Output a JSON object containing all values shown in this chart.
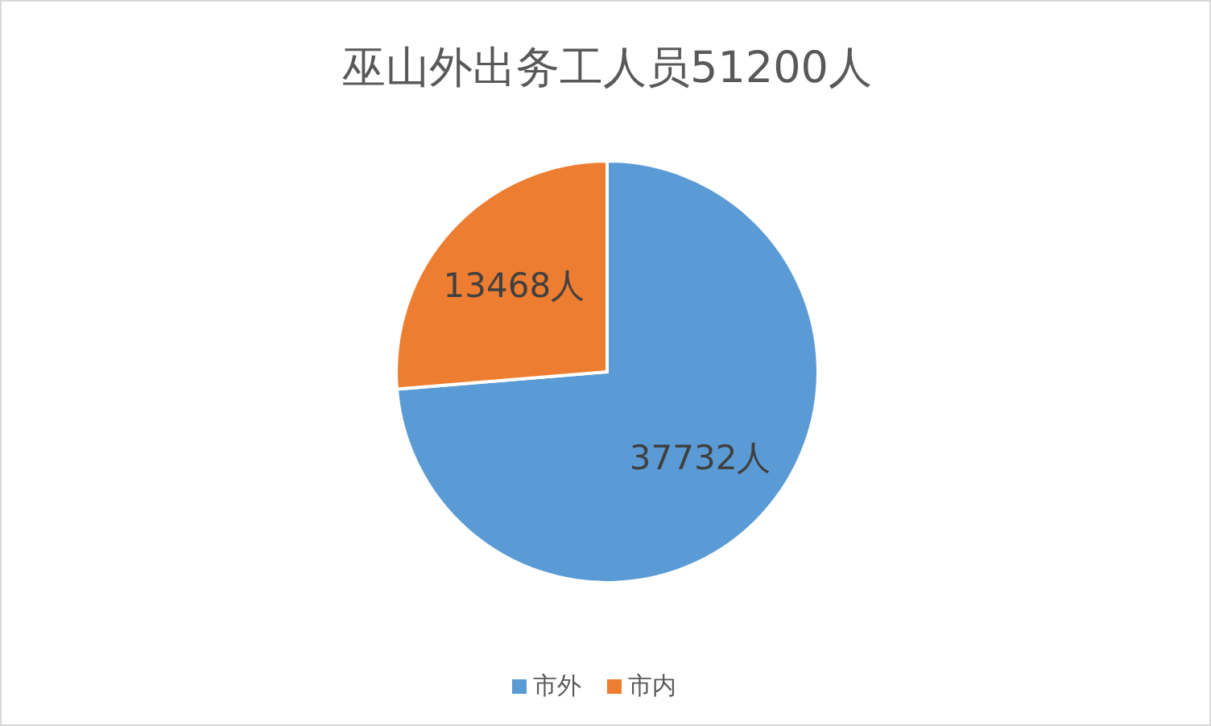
{
  "chart_data": {
    "type": "pie",
    "title": "巫山外出务工人员51200人",
    "categories": [
      "市外",
      "市内"
    ],
    "values": [
      37732,
      13468
    ],
    "colors": [
      "#5b9bd5",
      "#ed7d31"
    ],
    "value_labels": [
      "37732人",
      "13468人"
    ],
    "legend": "bottom"
  }
}
